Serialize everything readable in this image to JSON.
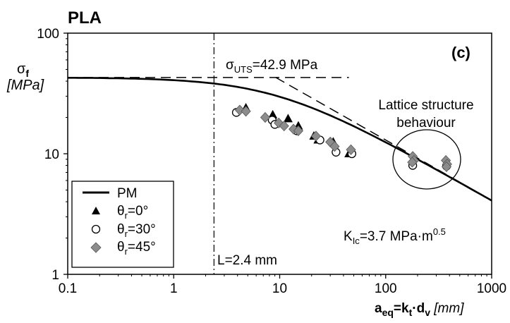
{
  "chart_data": {
    "type": "scatter",
    "title": "PLA",
    "panel_label": "(c)",
    "xscale": "log",
    "yscale": "log",
    "xlim": [
      0.1,
      1000
    ],
    "ylim": [
      1,
      100
    ],
    "xticks": [
      "0.1",
      "1",
      "10",
      "100",
      "1000"
    ],
    "yticks": [
      "1",
      "10",
      "100"
    ],
    "ylabel": {
      "main": "σ",
      "sub": "f",
      "unit": "[MPa]"
    },
    "xlabel": {
      "main": "a",
      "sub1": "eq",
      "mid": "=k",
      "sub2": "t",
      "dot": "·d",
      "sub3": "v",
      "unit": " [mm]"
    },
    "sigma_uts": {
      "prefix": "σ",
      "sub": "UTS",
      "value_text": "=42.9 MPa",
      "value": 42.9
    },
    "critical_distance": {
      "text": "L=2.4 mm",
      "value": 2.4
    },
    "kic": {
      "prefix": "K",
      "sub": "Ic",
      "value_text": "=3.7 MPa·m",
      "sup": "0.5"
    },
    "lattice_annotation": [
      "Lattice structure",
      "behaviour"
    ],
    "legend": {
      "placement": "bottom-left",
      "pm": "PM",
      "theta_symbol": "θ",
      "theta_sub": "r",
      "entries": [
        "=0°",
        "=30°",
        "=45°"
      ]
    },
    "series": [
      {
        "marker": "triangle-filled",
        "color": "#000000",
        "legend_index": 0,
        "points": [
          [
            4.8,
            24
          ],
          [
            8.6,
            21
          ],
          [
            12,
            19.5
          ],
          [
            15,
            17
          ],
          [
            21,
            14
          ],
          [
            23,
            13
          ],
          [
            32,
            12.5
          ],
          [
            45,
            10
          ]
        ]
      },
      {
        "marker": "circle-open",
        "color": "#000000",
        "legend_index": 1,
        "points": [
          [
            3.9,
            22
          ],
          [
            8.5,
            19
          ],
          [
            9,
            17.5
          ],
          [
            14.5,
            15.5
          ],
          [
            24,
            13
          ],
          [
            34,
            10.3
          ],
          [
            48,
            10
          ],
          [
            180,
            8
          ],
          [
            375,
            7.9
          ]
        ]
      },
      {
        "marker": "diamond-grey",
        "color": "#8c8c8c",
        "legend_index": 2,
        "points": [
          [
            4.2,
            23
          ],
          [
            4.8,
            22.5
          ],
          [
            7.3,
            20
          ],
          [
            9.8,
            18
          ],
          [
            11,
            17
          ],
          [
            13.5,
            16
          ],
          [
            15,
            15.5
          ],
          [
            22,
            14
          ],
          [
            30,
            12.5
          ],
          [
            33,
            11.5
          ],
          [
            47,
            10.8
          ],
          [
            180,
            9.5
          ],
          [
            185,
            8.8
          ],
          [
            178,
            8.5
          ],
          [
            370,
            8.8
          ],
          [
            380,
            8.2
          ],
          [
            375,
            7.8
          ]
        ]
      }
    ],
    "pm_curve": {
      "color": "#000000"
    }
  }
}
